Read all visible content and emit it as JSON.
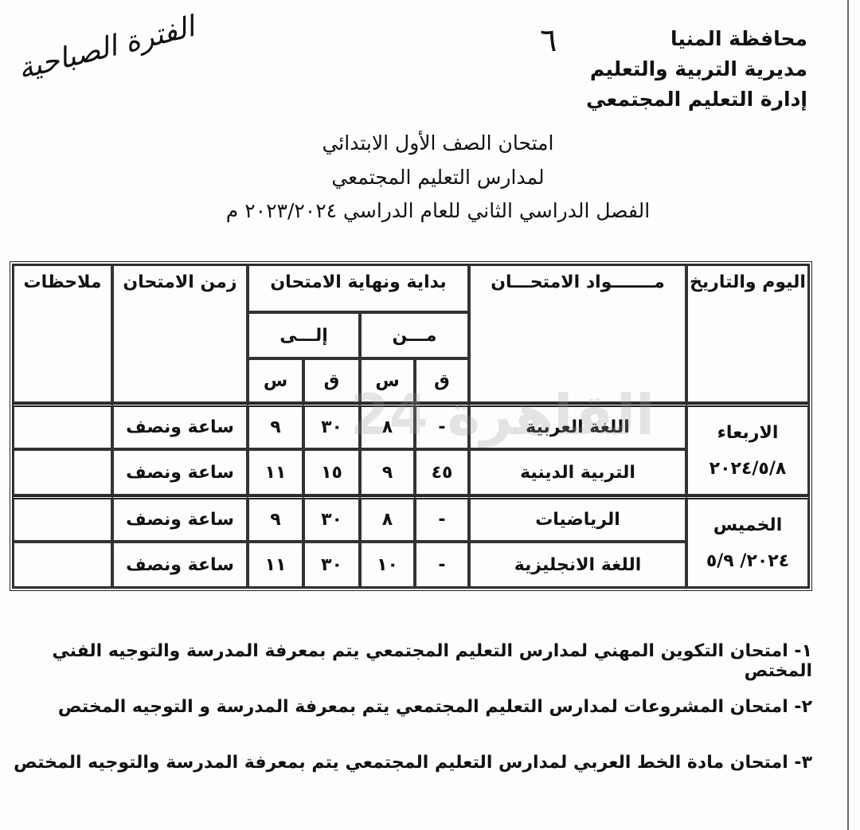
{
  "header": {
    "lines": [
      "محافظة المنيا",
      "مديرية التربية والتعليم",
      "إدارة التعليم المجتمعي"
    ]
  },
  "page_number": "٦",
  "stamp": "الفترة الصباحية",
  "titles": [
    "امتحان الصف الأول الابتدائي",
    "لمدارس التعليم المجتمعي",
    "الفصل الدراسي الثاني للعام الدراسي ٢٠٢٣/٢٠٢٤ م"
  ],
  "table": {
    "headers": {
      "day": "اليوم والتاريخ",
      "subject": "مـــــــواد الامتحـــان",
      "time_range": "بداية ونهاية الامتحان",
      "from": "مـــن",
      "to": "إلـــى",
      "minute": "ق",
      "hour": "س",
      "duration": "زمن الامتحان",
      "notes": "ملاحظات"
    },
    "groups": [
      {
        "day": "الاربعاء",
        "date": "٢٠٢٤/٥/٨",
        "rows": [
          {
            "subject": "اللغة العربية",
            "from_m": "-",
            "from_h": "٨",
            "to_m": "٣٠",
            "to_h": "٩",
            "duration": "ساعة ونصف",
            "notes": ""
          },
          {
            "subject": "التربية الدينية",
            "from_m": "٤٥",
            "from_h": "٩",
            "to_m": "١٥",
            "to_h": "١١",
            "duration": "ساعة ونصف",
            "notes": ""
          }
        ]
      },
      {
        "day": "الخميس",
        "date": "٢٠٢٤/ ٥/٩",
        "rows": [
          {
            "subject": "الرياضيات",
            "from_m": "-",
            "from_h": "٨",
            "to_m": "٣٠",
            "to_h": "٩",
            "duration": "ساعة ونصف",
            "notes": ""
          },
          {
            "subject": "اللغة الانجليزية",
            "from_m": "-",
            "from_h": "١٠",
            "to_m": "٣٠",
            "to_h": "١١",
            "duration": "ساعة ونصف",
            "notes": ""
          }
        ]
      }
    ]
  },
  "notes": [
    "١- امتحان التكوين المهني لمدارس التعليم المجتمعي يتم بمعرفة المدرسة والتوجيه الفني المختص",
    "٢- امتحان المشروعات لمدارس التعليم المجتمعي يتم بمعرفة المدرسة و التوجيه المختص",
    "٣- امتحان مادة الخط العربي لمدارس التعليم المجتمعي يتم بمعرفة المدرسة والتوجيه المختص"
  ],
  "watermark": "القاهرة 24"
}
